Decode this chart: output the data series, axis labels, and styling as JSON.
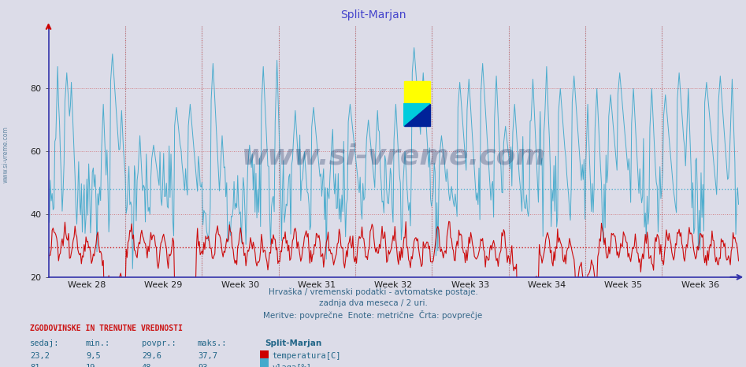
{
  "title": "Split-Marjan",
  "title_color": "#4444cc",
  "bg_color": "#dcdce8",
  "plot_bg_color": "#dcdce8",
  "x_label_weeks": [
    "Week 28",
    "Week 29",
    "Week 30",
    "Week 31",
    "Week 32",
    "Week 33",
    "Week 34",
    "Week 35",
    "Week 36"
  ],
  "ylim": [
    20,
    100
  ],
  "yticks": [
    20,
    40,
    60,
    80
  ],
  "temp_color": "#cc0000",
  "humidity_color": "#44aacc",
  "temp_avg": 29.6,
  "humidity_avg": 48,
  "temp_min": 9.5,
  "temp_max": 37.7,
  "temp_current": 23.2,
  "humidity_min": 19,
  "humidity_max": 93,
  "humidity_current": 81,
  "watermark": "www.si-vreme.com",
  "watermark_color": "#1a3060",
  "watermark_alpha": 0.3,
  "subtitle1": "Hrvaška / vremenski podatki - avtomatske postaje.",
  "subtitle2": "zadnja dva meseca / 2 uri.",
  "subtitle3": "Meritve: povprečne  Enote: metrične  Črta: povprečje",
  "legend_title": "ZGODOVINSKE IN TRENUTNE VREDNOSTI",
  "col_sedaj": "sedaj:",
  "col_min": "min.:",
  "col_povpr": "povpr.:",
  "col_maks": "maks.:",
  "col_station": "Split-Marjan",
  "n_points": 756,
  "vgrid_color": "#cc4444",
  "hgrid_color_red": "#cc4444",
  "hgrid_color_blue": "#6688aa"
}
